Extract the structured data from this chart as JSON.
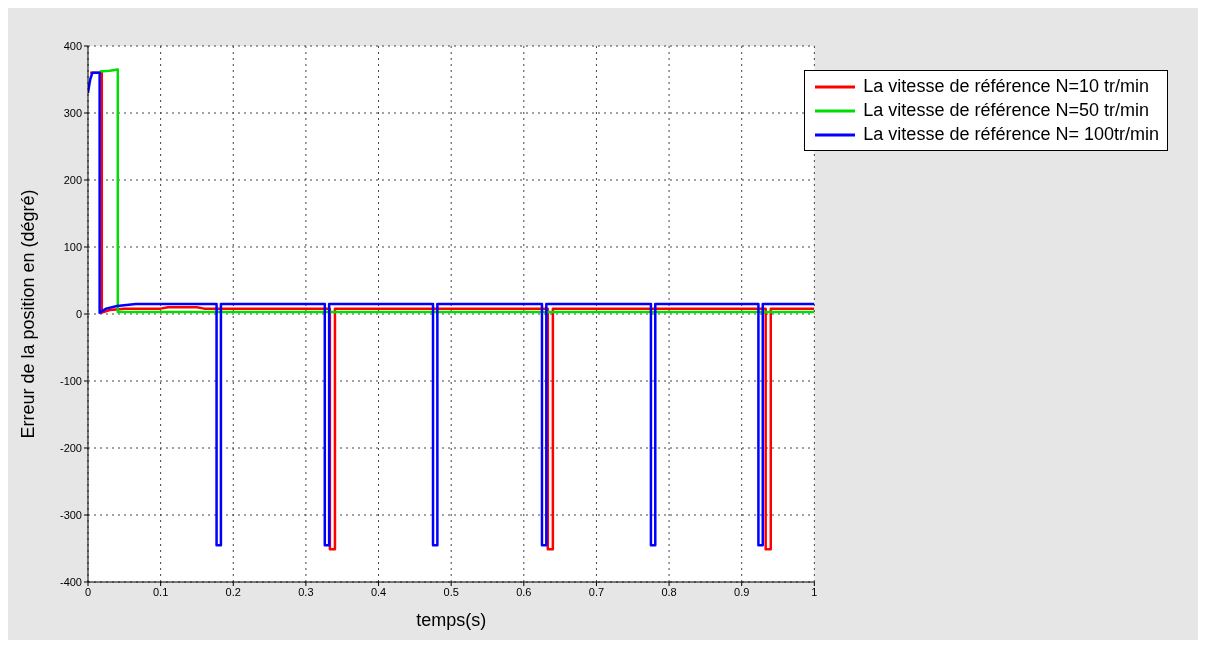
{
  "chart_data": {
    "type": "line",
    "xlabel": "temps(s)",
    "ylabel": "Erreur de la position  en (dégré)",
    "xlim": [
      0,
      1
    ],
    "xticks": [
      0,
      0.1,
      0.2,
      0.3,
      0.4,
      0.5,
      0.6,
      0.7,
      0.8,
      0.9,
      1
    ],
    "ylim": [
      -400,
      400
    ],
    "yticks": [
      -400,
      -300,
      -200,
      -100,
      0,
      100,
      200,
      300,
      400
    ],
    "grid": true,
    "legend": "top right",
    "marker": "none",
    "line_style": "solid",
    "series": [
      {
        "name": "La vitesse de référence N=10 tr/min",
        "color": "#ff0000",
        "x": [
          0.003,
          0.019,
          0.019,
          0.03,
          0.05,
          0.1,
          0.11,
          0.15,
          0.16,
          0.333,
          0.333,
          0.34,
          0.34,
          0.633,
          0.633,
          0.64,
          0.64,
          0.933,
          0.933,
          0.94,
          0.94,
          1
        ],
        "values": [
          360,
          360,
          2,
          6,
          8,
          8,
          10,
          10,
          8,
          8,
          -351,
          -351,
          8,
          8,
          -351,
          -351,
          8,
          8,
          -351,
          -351,
          8,
          8
        ]
      },
      {
        "name": "La vitesse de référence N=50 tr/min",
        "color": "#00dd00",
        "x": [
          0.016,
          0.03,
          0.041,
          0.041,
          0.1,
          1
        ],
        "values": [
          362,
          363,
          365,
          3,
          3,
          3
        ]
      },
      {
        "name": "La vitesse de référence N= 100tr/min",
        "color": "#0000ff",
        "x": [
          0,
          0.003,
          0.006,
          0.016,
          0.016,
          0.025,
          0.04,
          0.066,
          0.177,
          0.177,
          0.183,
          0.183,
          0.326,
          0.326,
          0.332,
          0.332,
          0.475,
          0.475,
          0.481,
          0.481,
          0.625,
          0.625,
          0.631,
          0.631,
          0.775,
          0.775,
          0.781,
          0.781,
          0.923,
          0.923,
          0.929,
          0.929,
          1
        ],
        "values": [
          330,
          350,
          360,
          360,
          2,
          8,
          12,
          15,
          15,
          -345,
          -345,
          15,
          15,
          -345,
          -345,
          15,
          15,
          -345,
          -345,
          15,
          15,
          -345,
          -345,
          15,
          15,
          -345,
          -345,
          15,
          15,
          -345,
          -345,
          15,
          15
        ]
      }
    ]
  }
}
